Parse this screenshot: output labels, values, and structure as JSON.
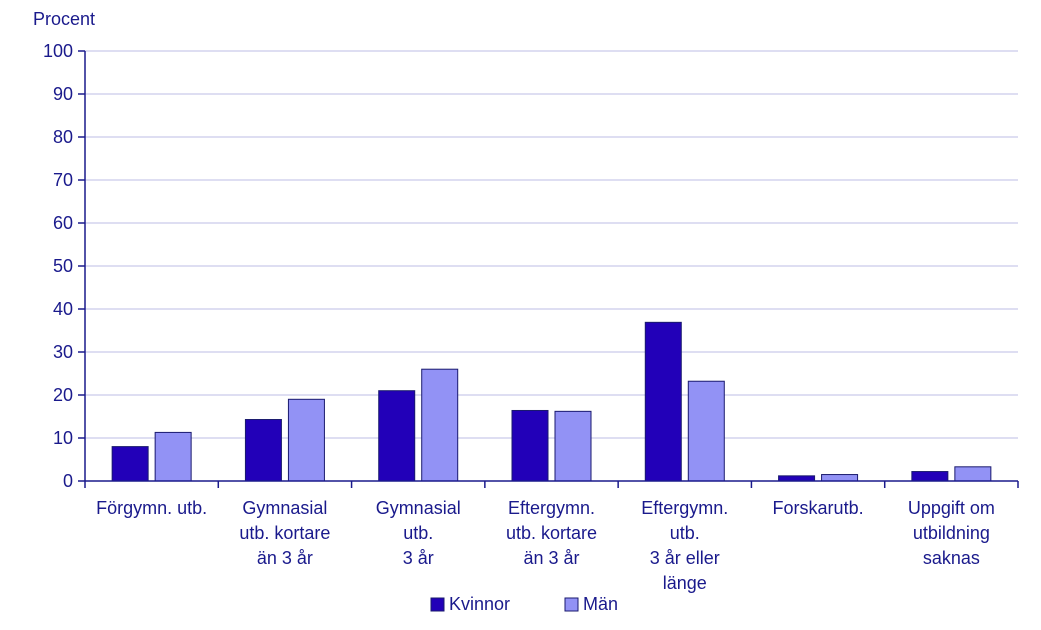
{
  "chart_data": {
    "type": "bar",
    "ylabel": "Procent",
    "ylim": [
      0,
      100
    ],
    "yticks": [
      0,
      10,
      20,
      30,
      40,
      50,
      60,
      70,
      80,
      90,
      100
    ],
    "grid": true,
    "legend_position": "bottom",
    "categories": [
      [
        "Förgymn. utb."
      ],
      [
        "Gymnasial",
        "utb. kortare",
        "än 3 år"
      ],
      [
        "Gymnasial",
        "utb.",
        "3 år"
      ],
      [
        "Eftergymn.",
        "utb. kortare",
        "än 3 år"
      ],
      [
        "Eftergymn.",
        "utb.",
        "3 år eller",
        "länge"
      ],
      [
        "Forskarutb."
      ],
      [
        "Uppgift om",
        "utbildning",
        "saknas"
      ]
    ],
    "series": [
      {
        "name": "Kvinnor",
        "color": "#2200b8",
        "values": [
          8,
          14.3,
          21,
          16.4,
          36.9,
          1.2,
          2.2
        ]
      },
      {
        "name": "Män",
        "color": "#9292f5",
        "values": [
          11.3,
          19,
          26,
          16.2,
          23.2,
          1.5,
          3.3
        ]
      }
    ],
    "colors": {
      "axis": "#1a1a8c",
      "grid": "#c9c9ea",
      "text": "#1a1a8c",
      "bar_stroke": "#1a1a6e"
    }
  }
}
